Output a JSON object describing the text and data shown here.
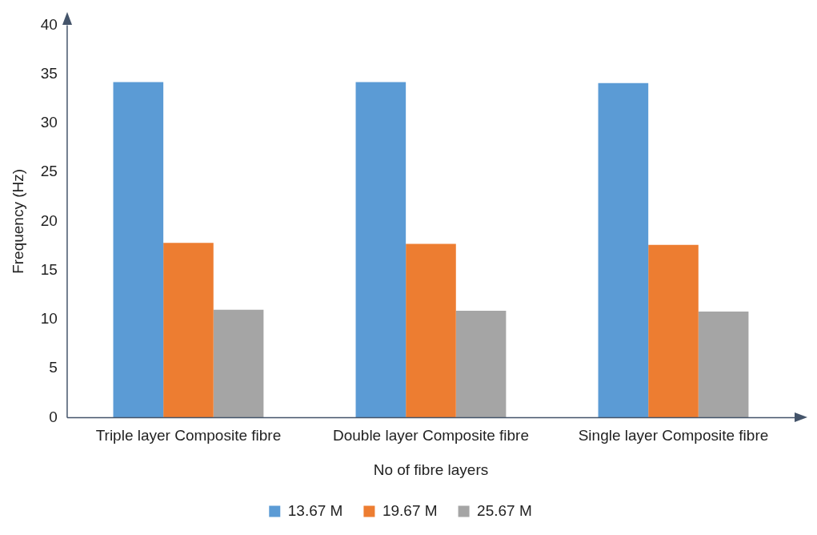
{
  "chart_data": {
    "type": "bar",
    "xlabel": "No of fibre layers",
    "ylabel": "Frequency (Hz)",
    "categories": [
      "Triple layer Composite fibre",
      "Double layer Composite fibre",
      "Single layer Composite fibre"
    ],
    "series": [
      {
        "name": "13.67 M",
        "color": "#5b9bd5",
        "values": [
          34.2,
          34.2,
          34.1
        ]
      },
      {
        "name": "19.67 M",
        "color": "#ed7d31",
        "values": [
          17.8,
          17.7,
          17.6
        ]
      },
      {
        "name": "25.67 M",
        "color": "#a5a5a5",
        "values": [
          11.0,
          10.9,
          10.8
        ]
      }
    ],
    "ylim": [
      0,
      40
    ],
    "yticks": [
      0,
      5,
      10,
      15,
      20,
      25,
      30,
      35,
      40
    ],
    "grid": false,
    "legend": "bottom"
  }
}
